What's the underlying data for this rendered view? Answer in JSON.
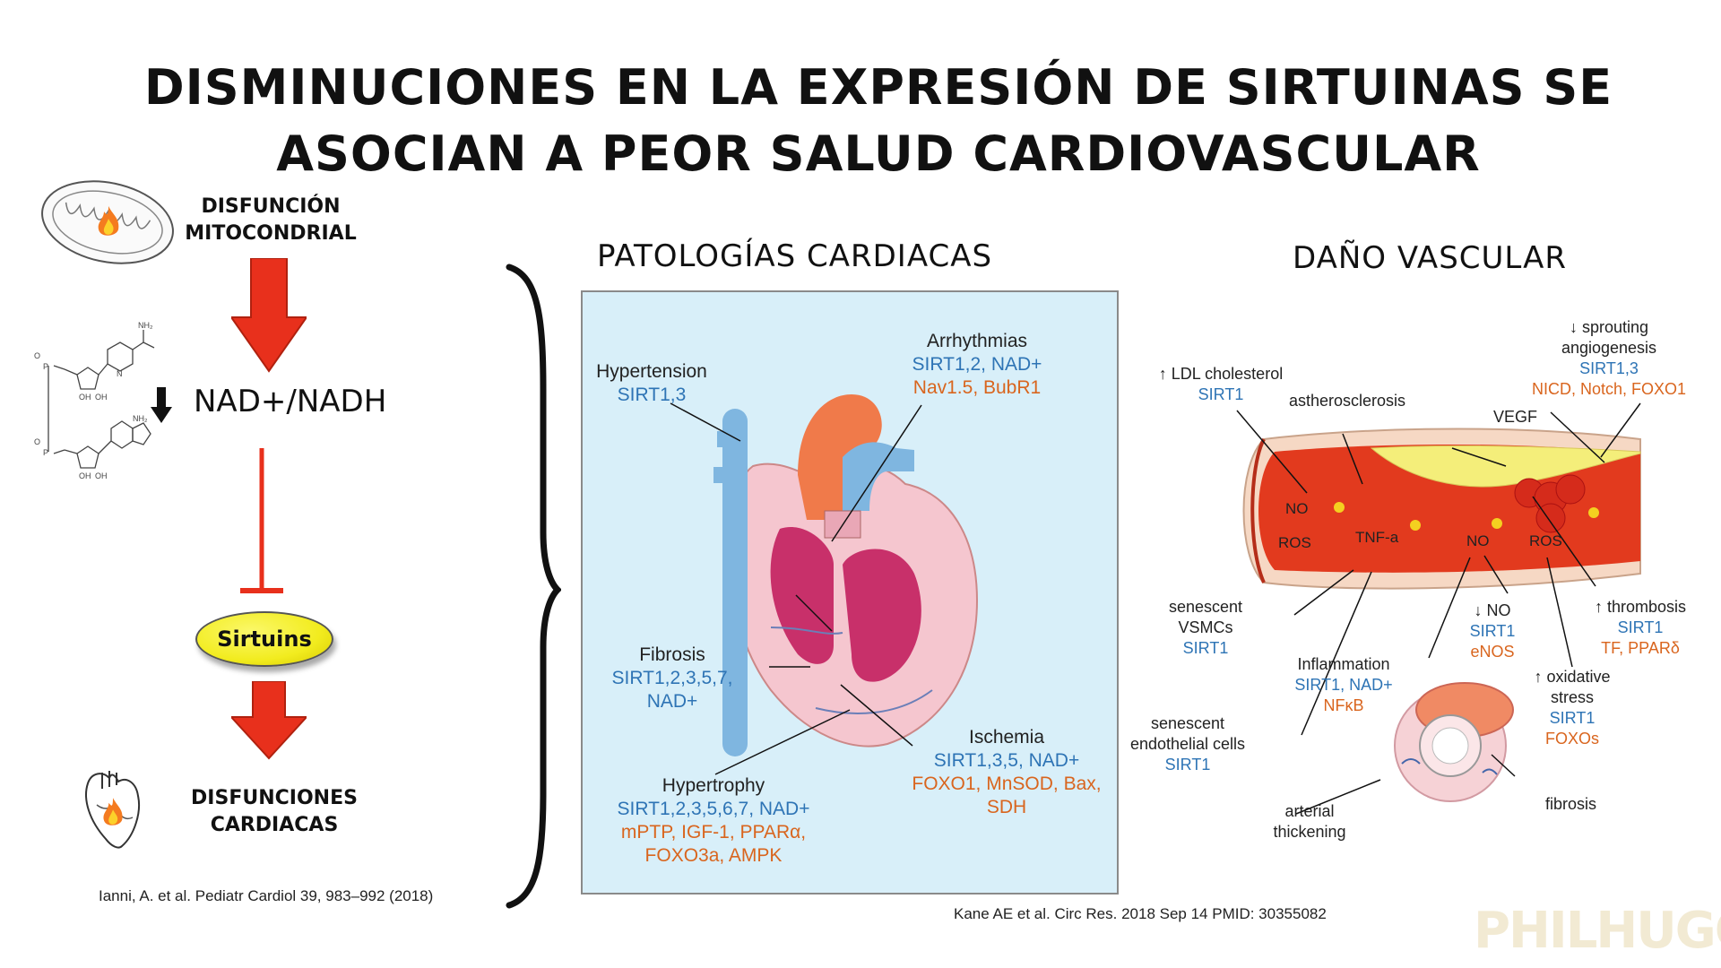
{
  "title": {
    "line1": "DISMINUCIONES EN LA EXPRESIÓN DE SIRTUINAS SE",
    "line2": "ASOCIAN A PEOR SALUD CARDIOVASCULAR"
  },
  "left": {
    "mito_label1": "DISFUNCIÓN",
    "mito_label2": "MITOCONDRIAL",
    "nad_label": "NAD+/NADH",
    "sirtuins_label": "Sirtuins",
    "cardiac_label1": "DISFUNCIONES",
    "cardiac_label2": "CARDIACAS",
    "citation": "Ianni, A. et al. Pediatr Cardiol 39, 983–992 (2018)",
    "molecule_labels": {
      "nh2_top": "NH₂",
      "nh2_mid": "NH₂",
      "oh1": "OH",
      "oh2": "OH",
      "oh3": "OH",
      "oh4": "OH",
      "o1": "O",
      "o2": "O",
      "p1": "P",
      "p2": "P",
      "n": "N"
    }
  },
  "cardiac": {
    "heading": "PATOLOGÍAS CARDIACAS",
    "hypertension": {
      "name": "Hypertension",
      "sirt": "SIRT1,3"
    },
    "arrhythmias": {
      "name": "Arrhythmias",
      "sirt": "SIRT1,2, NAD+",
      "other": "Nav1.5, BubR1"
    },
    "fibrosis": {
      "name": "Fibrosis",
      "sirt1": "SIRT1,2,3,5,7,",
      "sirt2": "NAD+"
    },
    "ischemia": {
      "name": "Ischemia",
      "sirt": "SIRT1,3,5, NAD+",
      "other1": "FOXO1, MnSOD, Bax,",
      "other2": "SDH"
    },
    "hypertrophy": {
      "name": "Hypertrophy",
      "sirt": "SIRT1,2,3,5,6,7, NAD+",
      "other1": "mPTP, IGF-1, PPARα,",
      "other2": "FOXO3a, AMPK"
    }
  },
  "vascular": {
    "heading": "DAÑO VASCULAR",
    "ldl": {
      "name": "↑ LDL cholesterol",
      "sirt": "SIRT1"
    },
    "athero": "astherosclerosis",
    "sprouting": {
      "name1": "↓ sprouting",
      "name2": "angiogenesis",
      "sirt": "SIRT1,3",
      "other": "NICD, Notch, FOXO1"
    },
    "vegf": "VEGF",
    "no1": "NO",
    "ros1": "ROS",
    "tnfa": "TNF-a",
    "no2": "NO",
    "ros2": "ROS",
    "vsmc": {
      "name1": "senescent",
      "name2": "VSMCs",
      "sirt": "SIRT1"
    },
    "no_down": {
      "name": "↓ NO",
      "sirt": "SIRT1",
      "other": "eNOS"
    },
    "thrombosis": {
      "name": "↑ thrombosis",
      "sirt": "SIRT1",
      "other": "TF, PPARδ"
    },
    "inflammation": {
      "name": "Inflammation",
      "sirt": "SIRT1, NAD+",
      "other": "NFκB"
    },
    "oxidative": {
      "name1": "↑ oxidative",
      "name2": "stress",
      "sirt": "SIRT1",
      "other": "FOXOs"
    },
    "endothelial": {
      "name1": "senescent",
      "name2": "endothelial cells",
      "sirt": "SIRT1"
    },
    "thickening": {
      "name1": "arterial",
      "name2": "thickening"
    },
    "fibrosis": "fibrosis",
    "citation": "Kane AE et al. Circ Res. 2018 Sep 14  PMID: 30355082"
  },
  "watermark": "PHILHUGO",
  "colors": {
    "arrow_red": "#e8301c",
    "sirtuins_yellow": "#f2ec1f",
    "panel_blue": "#d8eff9",
    "sirt_blue": "#2e74b5",
    "factor_orange": "#d9651e"
  }
}
